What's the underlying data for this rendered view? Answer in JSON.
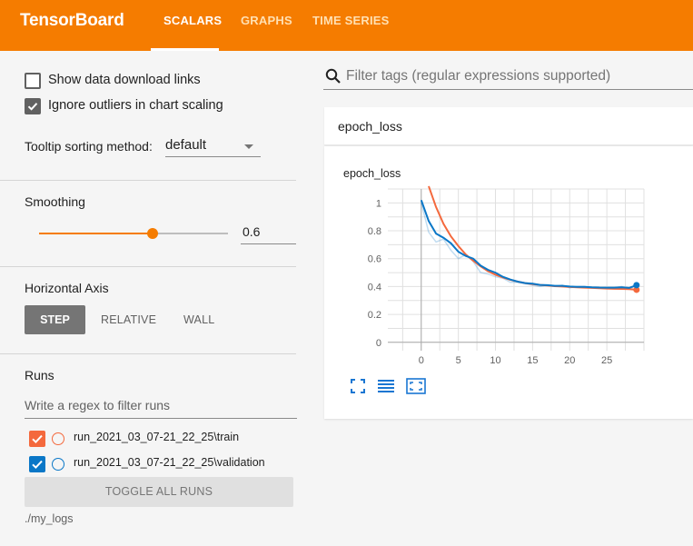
{
  "app": {
    "title": "TensorBoard",
    "tabs": [
      {
        "label": "SCALARS",
        "active": true
      },
      {
        "label": "GRAPHS",
        "active": false
      },
      {
        "label": "TIME SERIES",
        "active": false
      }
    ],
    "accent_color": "#f57c00"
  },
  "sidebar": {
    "options": [
      {
        "label": "Show data download links",
        "checked": false
      },
      {
        "label": "Ignore outliers in chart scaling",
        "checked": true
      }
    ],
    "tooltip": {
      "label": "Tooltip sorting method:",
      "value": "default"
    },
    "smoothing": {
      "label": "Smoothing",
      "value": "0.6",
      "slider_fraction": 0.6
    },
    "horizontal_axis": {
      "label": "Horizontal Axis",
      "options": [
        "STEP",
        "RELATIVE",
        "WALL"
      ],
      "selected": "STEP"
    },
    "runs": {
      "label": "Runs",
      "filter_placeholder": "Write a regex to filter runs",
      "items": [
        {
          "name": "run_2021_03_07-21_22_25\\train",
          "color": "#f4693d",
          "checked": true
        },
        {
          "name": "run_2021_03_07-21_22_25\\validation",
          "color": "#0a77c7",
          "checked": true
        }
      ],
      "toggle_label": "TOGGLE ALL RUNS",
      "logdir": "./my_logs"
    }
  },
  "main": {
    "search_placeholder": "Filter tags (regular expressions supported)",
    "card_header": "epoch_loss",
    "chart_icons": [
      "fit-domain-icon",
      "log-scale-icon",
      "expand-icon"
    ]
  },
  "chart_data": {
    "type": "line",
    "title": "epoch_loss",
    "xlabel": "",
    "ylabel": "",
    "xlim": [
      -4.5,
      30
    ],
    "ylim": [
      -0.06,
      1.1
    ],
    "x_ticks": [
      0,
      5,
      10,
      15,
      20,
      25
    ],
    "y_ticks": [
      0,
      0.2,
      0.4,
      0.6,
      0.8,
      1
    ],
    "grid": true,
    "series": [
      {
        "name": "run_2021_03_07-21_22_25\\train",
        "color": "#f4693d",
        "smoothed": [
          [
            1,
            1.12
          ],
          [
            2,
            0.97
          ],
          [
            3,
            0.85
          ],
          [
            4,
            0.76
          ],
          [
            5,
            0.69
          ],
          [
            6,
            0.63
          ],
          [
            7,
            0.585
          ],
          [
            8,
            0.545
          ],
          [
            9,
            0.51
          ],
          [
            10,
            0.485
          ],
          [
            11,
            0.465
          ],
          [
            12,
            0.448
          ],
          [
            13,
            0.435
          ],
          [
            14,
            0.425
          ],
          [
            15,
            0.418
          ],
          [
            16,
            0.412
          ],
          [
            17,
            0.407
          ],
          [
            18,
            0.403
          ],
          [
            19,
            0.4
          ],
          [
            20,
            0.397
          ],
          [
            21,
            0.394
          ],
          [
            22,
            0.392
          ],
          [
            23,
            0.39
          ],
          [
            24,
            0.388
          ],
          [
            25,
            0.386
          ],
          [
            26,
            0.384
          ],
          [
            27,
            0.383
          ],
          [
            28,
            0.382
          ],
          [
            29,
            0.377
          ]
        ],
        "raw": []
      },
      {
        "name": "run_2021_03_07-21_22_25\\validation",
        "color": "#0a77c7",
        "smoothed": [
          [
            0,
            1.02
          ],
          [
            1,
            0.87
          ],
          [
            2,
            0.78
          ],
          [
            3,
            0.75
          ],
          [
            4,
            0.71
          ],
          [
            5,
            0.65
          ],
          [
            6,
            0.62
          ],
          [
            7,
            0.6
          ],
          [
            8,
            0.55
          ],
          [
            9,
            0.52
          ],
          [
            10,
            0.5
          ],
          [
            11,
            0.47
          ],
          [
            12,
            0.45
          ],
          [
            13,
            0.435
          ],
          [
            14,
            0.425
          ],
          [
            15,
            0.42
          ],
          [
            16,
            0.412
          ],
          [
            17,
            0.41
          ],
          [
            18,
            0.405
          ],
          [
            19,
            0.405
          ],
          [
            20,
            0.4
          ],
          [
            21,
            0.398
          ],
          [
            22,
            0.398
          ],
          [
            23,
            0.395
          ],
          [
            24,
            0.393
          ],
          [
            25,
            0.392
          ],
          [
            26,
            0.392
          ],
          [
            27,
            0.395
          ],
          [
            28,
            0.39
          ],
          [
            29,
            0.41
          ]
        ],
        "raw": [
          [
            0,
            1.0
          ],
          [
            1,
            0.79
          ],
          [
            2,
            0.72
          ],
          [
            3,
            0.74
          ],
          [
            4,
            0.66
          ],
          [
            5,
            0.6
          ],
          [
            6,
            0.63
          ],
          [
            7,
            0.58
          ],
          [
            8,
            0.5
          ],
          [
            9,
            0.49
          ],
          [
            10,
            0.47
          ],
          [
            11,
            0.46
          ],
          [
            12,
            0.43
          ],
          [
            13,
            0.43
          ],
          [
            14,
            0.42
          ],
          [
            15,
            0.41
          ],
          [
            16,
            0.4
          ],
          [
            17,
            0.41
          ],
          [
            18,
            0.4
          ],
          [
            19,
            0.41
          ],
          [
            20,
            0.39
          ],
          [
            21,
            0.4
          ],
          [
            22,
            0.4
          ],
          [
            23,
            0.39
          ],
          [
            24,
            0.39
          ],
          [
            25,
            0.39
          ],
          [
            26,
            0.39
          ],
          [
            27,
            0.4
          ],
          [
            28,
            0.38
          ],
          [
            29,
            0.41
          ]
        ]
      }
    ]
  }
}
